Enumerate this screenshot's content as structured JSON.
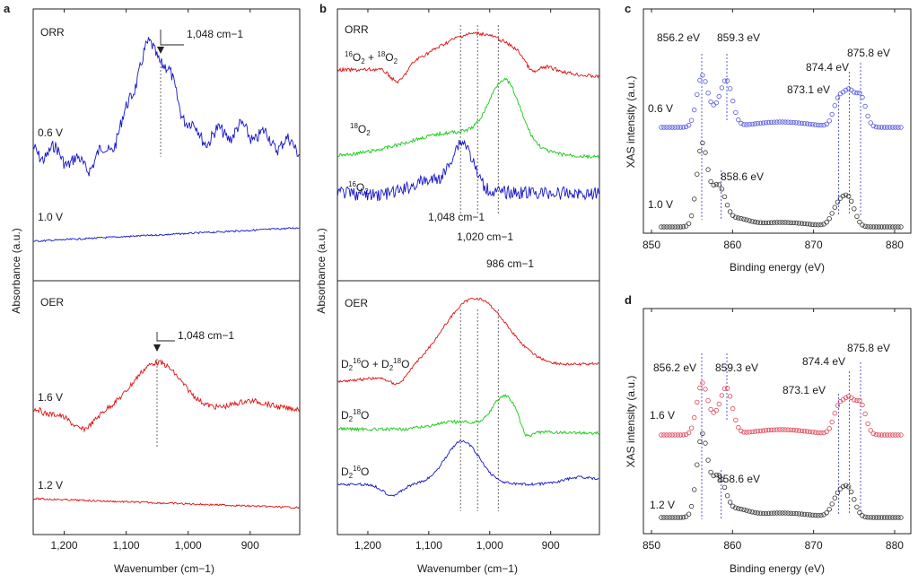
{
  "chart_data": [
    {
      "panel": "a",
      "type": "line",
      "xlabel": "Wavenumber (cm−1)",
      "ylabel": "Absorbance (a.u.)",
      "xlim": [
        1250,
        820
      ],
      "x_ticks": [
        {
          "value": 1200,
          "label": "1,200"
        },
        {
          "value": 1100,
          "label": "1,100"
        },
        {
          "value": 1000,
          "label": "1,000"
        },
        {
          "value": 900,
          "label": "900"
        }
      ],
      "sections": [
        {
          "name": "ORR",
          "series": [
            {
              "label": "0.6 V",
              "color": "#1515cc",
              "profile": "orr_a_06",
              "amplitude": 100
            },
            {
              "label": "1.0 V",
              "color": "#1515cc",
              "profile": "flat",
              "amplitude": 0
            }
          ],
          "marker": {
            "value": 1048,
            "label": "1,048 cm−1"
          }
        },
        {
          "name": "OER",
          "series": [
            {
              "label": "1.6 V",
              "color": "#dd1111",
              "profile": "oer_a_16",
              "amplitude": 100
            },
            {
              "label": "1.2 V",
              "color": "#dd1111",
              "profile": "flat",
              "amplitude": 0
            }
          ],
          "marker": {
            "value": 1048,
            "label": "1,048 cm−1"
          }
        }
      ]
    },
    {
      "panel": "b",
      "type": "line",
      "xlabel": "Wavenumber (cm−1)",
      "ylabel": "Absorbance (a.u.)",
      "xlim": [
        1250,
        820
      ],
      "x_ticks": [
        {
          "value": 1200,
          "label": "1,200"
        },
        {
          "value": 1100,
          "label": "1,100"
        },
        {
          "value": 1000,
          "label": "1,000"
        },
        {
          "value": 900,
          "label": "900"
        }
      ],
      "reference_lines": [
        1048,
        1020,
        986
      ],
      "reference_labels": [
        "1,048 cm−1",
        "1,020 cm−1",
        "986 cm−1"
      ],
      "sections": [
        {
          "name": "ORR",
          "series": [
            {
              "label": "16O2 + 18O2",
              "color": "#dd1111",
              "profile": "orr_b_mix"
            },
            {
              "label": "18O2",
              "color": "#11cc11",
              "profile": "orr_b_18"
            },
            {
              "label": "16O2",
              "color": "#1515cc",
              "profile": "orr_b_16"
            }
          ]
        },
        {
          "name": "OER",
          "series": [
            {
              "label": "D2 16O + D2 18O",
              "color": "#dd1111",
              "profile": "oer_b_mix"
            },
            {
              "label": "D2 18O",
              "color": "#11cc11",
              "profile": "oer_b_18"
            },
            {
              "label": "D2 16O",
              "color": "#1515cc",
              "profile": "oer_b_16"
            }
          ]
        }
      ]
    },
    {
      "panel": "c",
      "type": "scatter",
      "xlabel": "Binding energy (eV)",
      "ylabel": "XAS intensity (a.u.)",
      "xlim": [
        849,
        882
      ],
      "x_ticks": [
        850,
        860,
        870,
        880
      ],
      "series": [
        {
          "label": "0.6 V",
          "color": "#5555dd",
          "peaks": [
            856.2,
            859.3,
            873.1,
            874.4,
            875.8
          ]
        },
        {
          "label": "1.0 V",
          "color": "#333333",
          "peaks": [
            856.2,
            858.6,
            873.1,
            874.4
          ]
        }
      ],
      "annotations": [
        "856.2 eV",
        "859.3 eV",
        "874.4 eV",
        "875.8 eV",
        "873.1 eV",
        "858.6 eV"
      ]
    },
    {
      "panel": "d",
      "type": "scatter",
      "xlabel": "Binding energy (eV)",
      "ylabel": "XAS intensity (a.u.)",
      "xlim": [
        849,
        882
      ],
      "x_ticks": [
        850,
        860,
        870,
        880
      ],
      "series": [
        {
          "label": "1.6 V",
          "color": "#dd4455",
          "peaks": [
            856.2,
            859.3,
            873.1,
            874.4,
            875.8
          ]
        },
        {
          "label": "1.2 V",
          "color": "#333333",
          "peaks": [
            856.2,
            858.6,
            873.1,
            874.4
          ]
        }
      ],
      "annotations": [
        "856.2 eV",
        "859.3 eV",
        "874.4 eV",
        "875.8 eV",
        "873.1 eV",
        "858.6 eV"
      ]
    }
  ]
}
